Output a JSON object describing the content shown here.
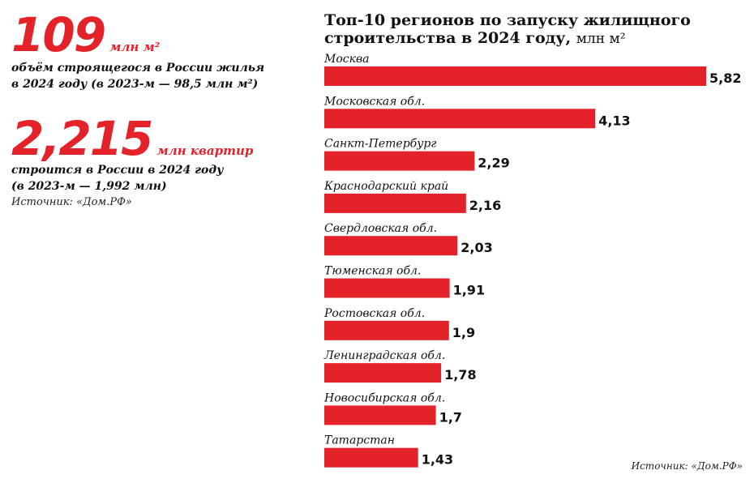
{
  "stats": [
    {
      "number": "109",
      "unit": "млн м²",
      "desc_line1": "объём строящегося в России жилья",
      "desc_line2": "в 2024 году (в 2023-м — 98,5 млн м²)"
    },
    {
      "number": "2,215",
      "unit": "млн квартир",
      "desc_line1": "строится в России в 2024 году",
      "desc_line2": "(в 2023-м — 1,992 млн)"
    }
  ],
  "source_left": "Источник: «Дом.РФ»",
  "source_right": "Источник: «Дом.РФ»",
  "colors": {
    "accent": "#e3222a",
    "text": "#111111"
  },
  "chart_data": {
    "type": "bar",
    "orientation": "horizontal",
    "title": "Топ-10 регионов по запуску жилищного строительства в 2024 году,",
    "title_unit": "млн м²",
    "categories": [
      "Москва",
      "Московская обл.",
      "Санкт-Петербург",
      "Краснодарский край",
      "Свердловская обл.",
      "Тюменская обл.",
      "Ростовская обл.",
      "Ленинградская обл.",
      "Новосибирская обл.",
      "Татарстан"
    ],
    "values": [
      5.82,
      4.13,
      2.29,
      2.16,
      2.03,
      1.91,
      1.9,
      1.78,
      1.7,
      1.43
    ],
    "value_labels": [
      "5,82",
      "4,13",
      "2,29",
      "2,16",
      "2,03",
      "1,91",
      "1,9",
      "1,78",
      "1,7",
      "1,43"
    ],
    "xlim": [
      0,
      5.82
    ],
    "grid": false,
    "legend": "none"
  }
}
